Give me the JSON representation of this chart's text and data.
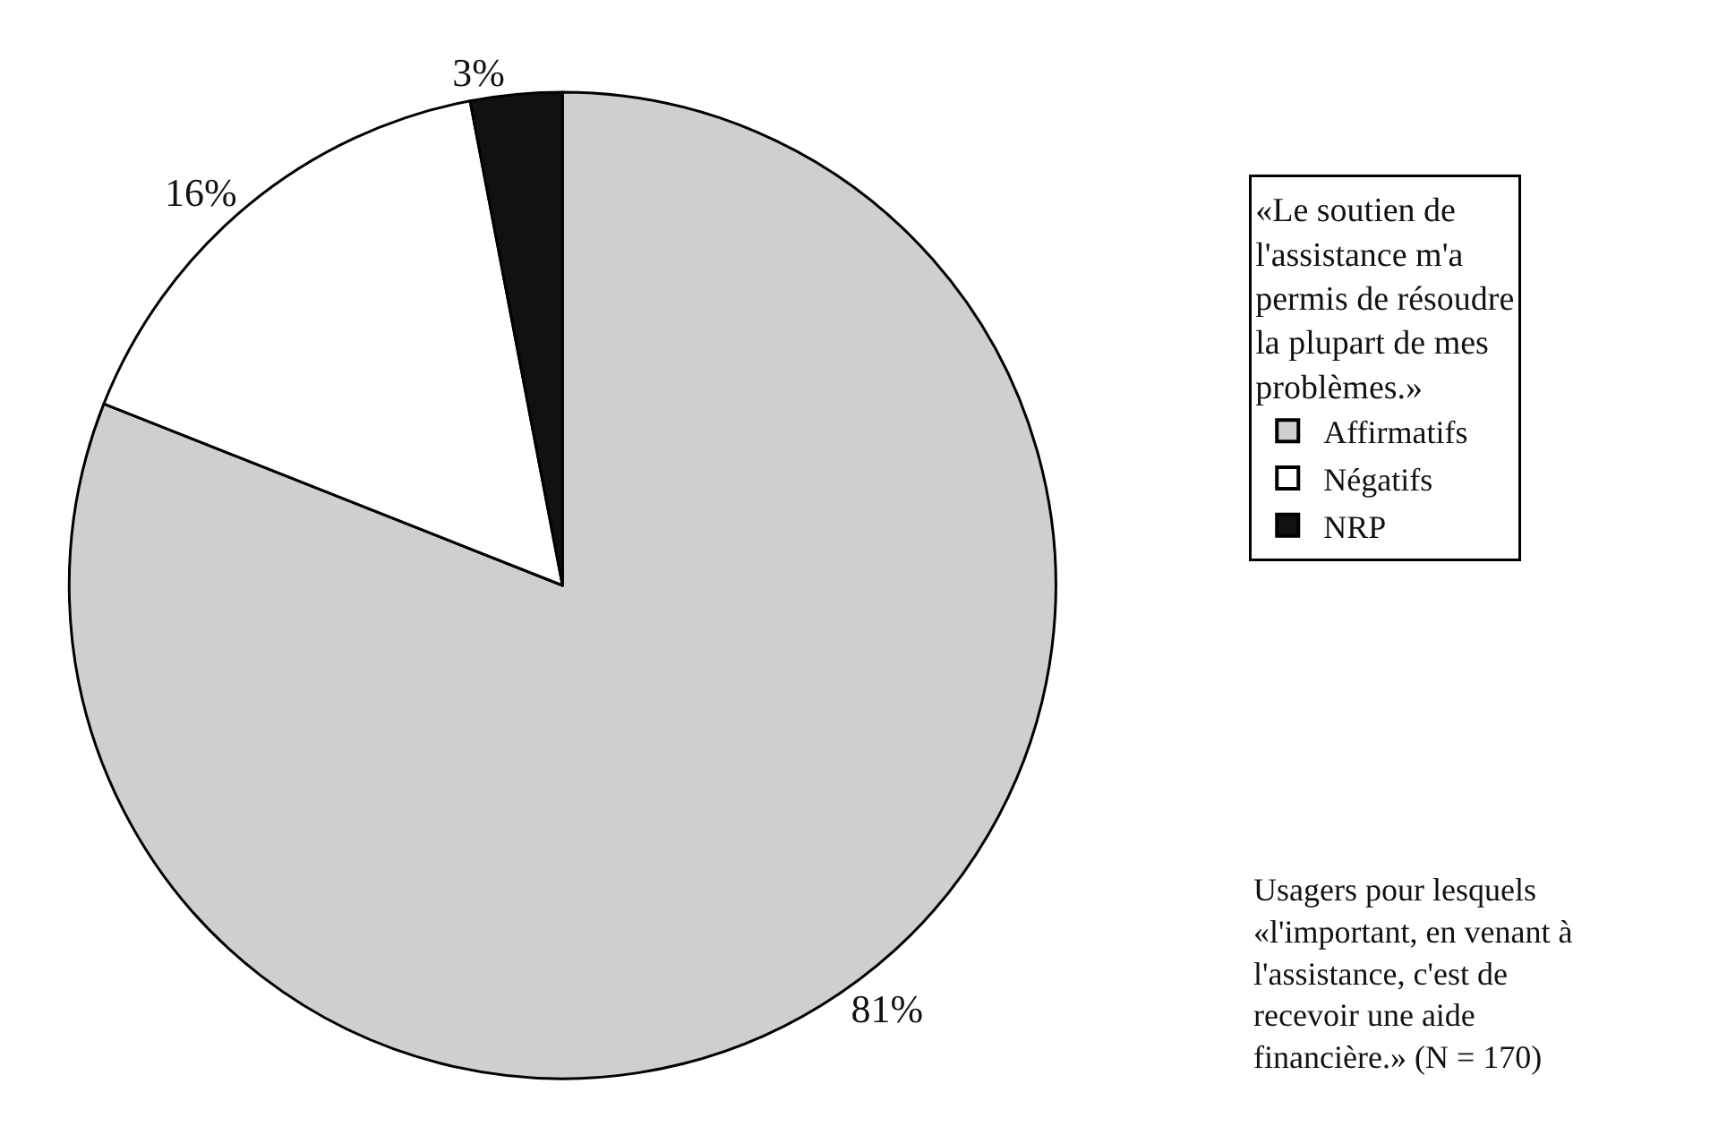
{
  "chart_data": {
    "type": "pie",
    "categories": [
      "Affirmatifs",
      "Négatifs",
      "NRP"
    ],
    "values": [
      81,
      16,
      3
    ],
    "value_labels": [
      "81%",
      "16%",
      "3%"
    ],
    "colors": [
      "#cfcfcf",
      "#ffffff",
      "#111111"
    ],
    "legend_title": "«Le soutien de l'assistance m'a permis de résoudre la plupart de mes problèmes.»",
    "legend": "right",
    "annotations": [
      "Usagers pour lesquels «l'important, en venant à l'assistance, c'est de recevoir une aide financière.» (N = 170)"
    ]
  }
}
